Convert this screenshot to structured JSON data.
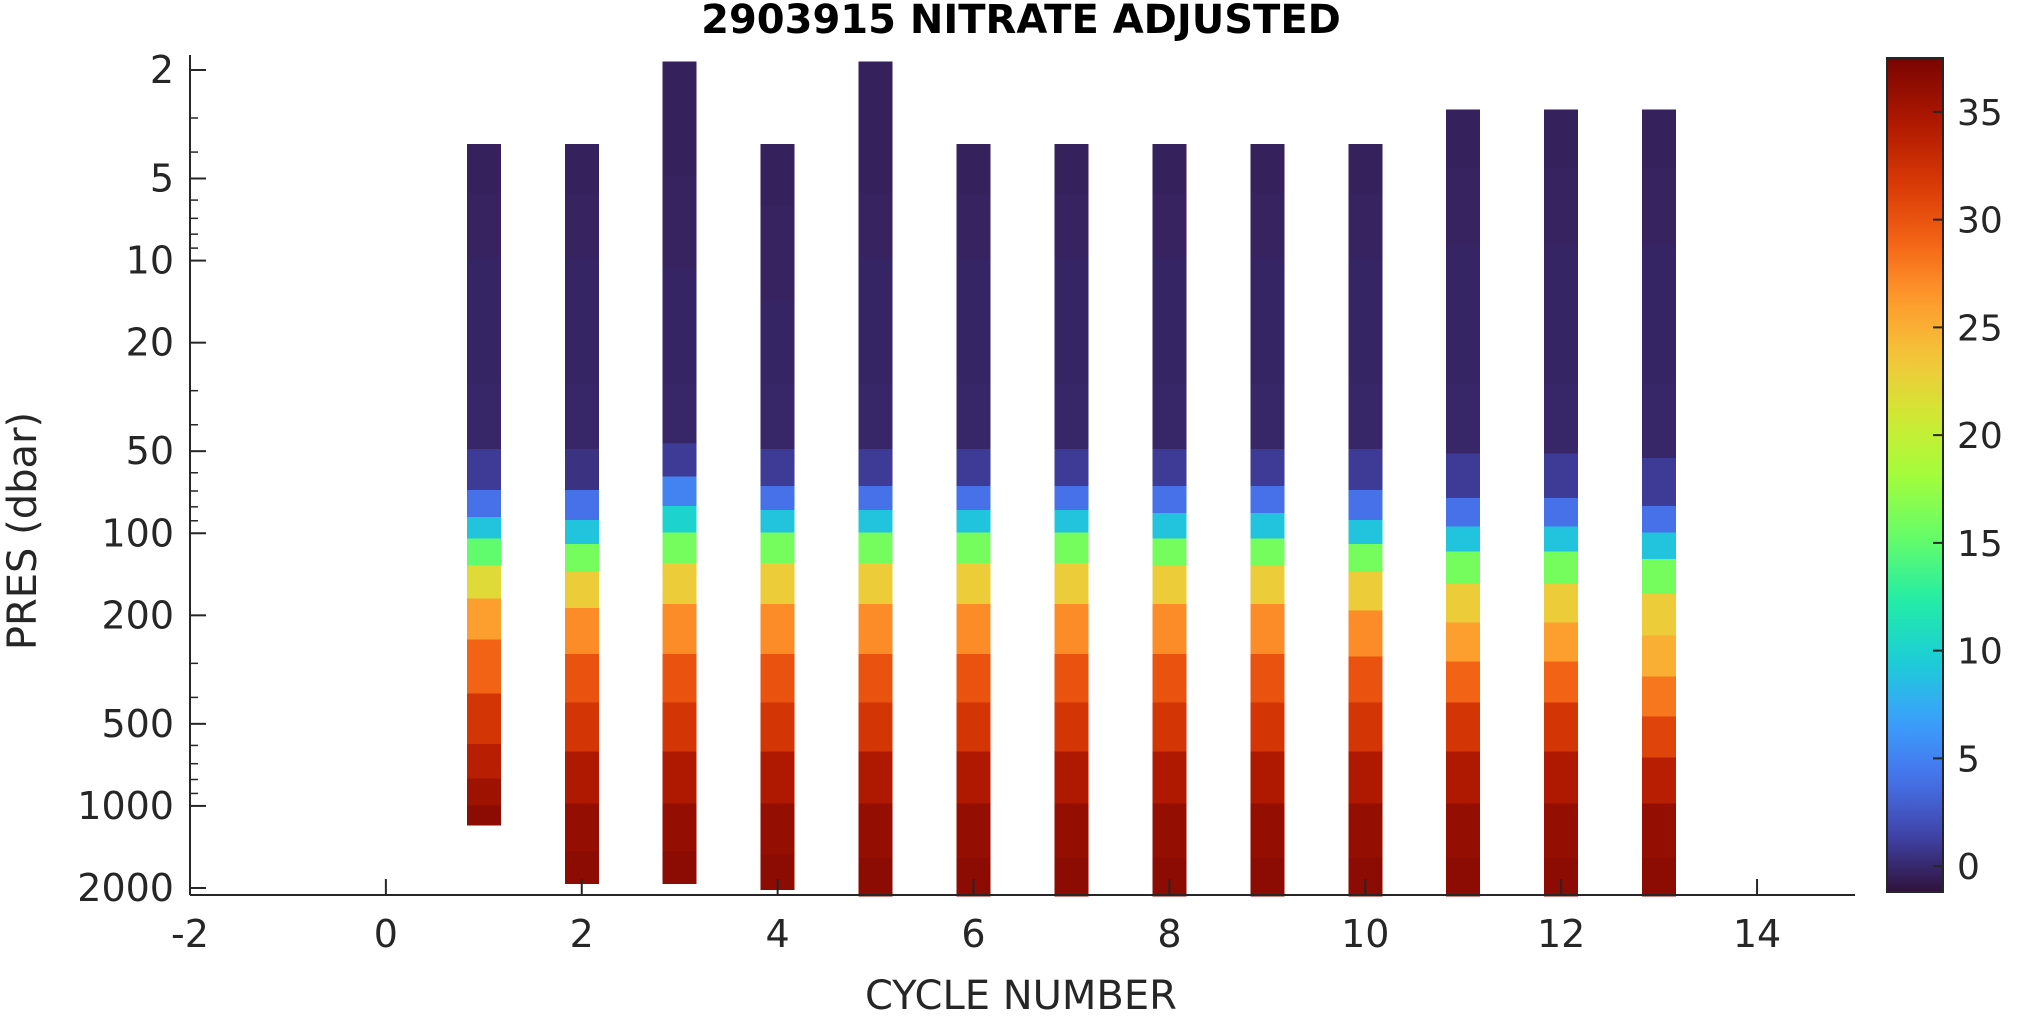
{
  "chart_data": {
    "type": "heatmap",
    "title": "2903915  NITRATE ADJUSTED",
    "xlabel": "CYCLE NUMBER",
    "ylabel": "PRES (dbar)",
    "xlim": [
      -2,
      15
    ],
    "x_ticks": [
      -2,
      0,
      2,
      4,
      6,
      8,
      10,
      12,
      14
    ],
    "ylim": [
      1.6,
      2300
    ],
    "y_scale": "log",
    "y_direction": "reversed",
    "y_ticks": [
      2,
      5,
      10,
      20,
      50,
      100,
      200,
      500,
      1000,
      2000
    ],
    "colorbar": {
      "colormap": "turbo",
      "range": [
        -1.2,
        37.5
      ],
      "ticks": [
        0,
        5,
        10,
        15,
        20,
        25,
        30,
        35
      ]
    },
    "profiles": [
      {
        "cycle": 1,
        "nitrate": [
          [
            4,
            -0.4
          ],
          [
            8,
            -0.3
          ],
          [
            12,
            -0.2
          ],
          [
            20,
            -0.2
          ],
          [
            40,
            -0.1
          ],
          [
            60,
            1
          ],
          [
            80,
            4
          ],
          [
            95,
            9
          ],
          [
            115,
            15
          ],
          [
            150,
            22
          ],
          [
            200,
            26
          ],
          [
            300,
            29
          ],
          [
            500,
            32
          ],
          [
            700,
            34
          ],
          [
            900,
            35.5
          ],
          [
            1100,
            36.5
          ]
        ]
      },
      {
        "cycle": 2,
        "nitrate": [
          [
            4,
            -0.4
          ],
          [
            8,
            -0.3
          ],
          [
            12,
            -0.2
          ],
          [
            20,
            -0.2
          ],
          [
            40,
            -0.1
          ],
          [
            60,
            0.5
          ],
          [
            80,
            4
          ],
          [
            100,
            9
          ],
          [
            120,
            16
          ],
          [
            160,
            23
          ],
          [
            220,
            27
          ],
          [
            350,
            30
          ],
          [
            500,
            32
          ],
          [
            800,
            34.5
          ],
          [
            1200,
            36
          ],
          [
            1800,
            36.5
          ]
        ]
      },
      {
        "cycle": 3,
        "nitrate": [
          [
            2,
            -0.4
          ],
          [
            4,
            -0.4
          ],
          [
            6,
            -0.3
          ],
          [
            9,
            -0.3
          ],
          [
            13,
            -0.2
          ],
          [
            20,
            -0.2
          ],
          [
            40,
            -0.1
          ],
          [
            55,
            1
          ],
          [
            70,
            5
          ],
          [
            90,
            10
          ],
          [
            110,
            16
          ],
          [
            150,
            23
          ],
          [
            220,
            27
          ],
          [
            350,
            30
          ],
          [
            500,
            32
          ],
          [
            800,
            34.5
          ],
          [
            1200,
            36
          ],
          [
            1800,
            36.5
          ]
        ]
      },
      {
        "cycle": 4,
        "nitrate": [
          [
            4,
            -0.4
          ],
          [
            10,
            -0.3
          ],
          [
            20,
            -0.2
          ],
          [
            40,
            -0.1
          ],
          [
            60,
            1
          ],
          [
            75,
            4
          ],
          [
            90,
            9
          ],
          [
            110,
            16
          ],
          [
            150,
            23
          ],
          [
            220,
            27
          ],
          [
            350,
            30
          ],
          [
            500,
            32
          ],
          [
            800,
            34.5
          ],
          [
            1200,
            36
          ],
          [
            1900,
            36.5
          ]
        ]
      },
      {
        "cycle": 5,
        "nitrate": [
          [
            2,
            -0.4
          ],
          [
            4,
            -0.4
          ],
          [
            8,
            -0.3
          ],
          [
            12,
            -0.2
          ],
          [
            20,
            -0.2
          ],
          [
            40,
            -0.1
          ],
          [
            60,
            1
          ],
          [
            75,
            4
          ],
          [
            90,
            9
          ],
          [
            110,
            16
          ],
          [
            150,
            23
          ],
          [
            220,
            27
          ],
          [
            350,
            30
          ],
          [
            500,
            32
          ],
          [
            800,
            34.5
          ],
          [
            1200,
            36
          ],
          [
            2000,
            36.5
          ]
        ]
      },
      {
        "cycle": 6,
        "nitrate": [
          [
            4,
            -0.4
          ],
          [
            8,
            -0.3
          ],
          [
            12,
            -0.2
          ],
          [
            20,
            -0.2
          ],
          [
            40,
            -0.1
          ],
          [
            60,
            1
          ],
          [
            75,
            4
          ],
          [
            90,
            9
          ],
          [
            110,
            16
          ],
          [
            150,
            23
          ],
          [
            220,
            27
          ],
          [
            350,
            30
          ],
          [
            500,
            32
          ],
          [
            800,
            34.5
          ],
          [
            1200,
            36
          ],
          [
            2000,
            36.5
          ]
        ]
      },
      {
        "cycle": 7,
        "nitrate": [
          [
            4,
            -0.4
          ],
          [
            8,
            -0.3
          ],
          [
            12,
            -0.2
          ],
          [
            20,
            -0.2
          ],
          [
            40,
            -0.1
          ],
          [
            60,
            1
          ],
          [
            75,
            4
          ],
          [
            90,
            9
          ],
          [
            110,
            16
          ],
          [
            150,
            23
          ],
          [
            220,
            27
          ],
          [
            350,
            30
          ],
          [
            500,
            32
          ],
          [
            800,
            34.5
          ],
          [
            1200,
            36
          ],
          [
            2000,
            36.5
          ]
        ]
      },
      {
        "cycle": 8,
        "nitrate": [
          [
            4,
            -0.4
          ],
          [
            8,
            -0.3
          ],
          [
            12,
            -0.2
          ],
          [
            20,
            -0.2
          ],
          [
            40,
            -0.1
          ],
          [
            60,
            1
          ],
          [
            75,
            4
          ],
          [
            95,
            9
          ],
          [
            115,
            16
          ],
          [
            150,
            23
          ],
          [
            220,
            27
          ],
          [
            350,
            30
          ],
          [
            500,
            32
          ],
          [
            800,
            34.5
          ],
          [
            1200,
            36
          ],
          [
            2000,
            36.5
          ]
        ]
      },
      {
        "cycle": 9,
        "nitrate": [
          [
            4,
            -0.4
          ],
          [
            8,
            -0.3
          ],
          [
            12,
            -0.2
          ],
          [
            20,
            -0.2
          ],
          [
            40,
            -0.1
          ],
          [
            60,
            1
          ],
          [
            75,
            4
          ],
          [
            95,
            9
          ],
          [
            115,
            16
          ],
          [
            150,
            23
          ],
          [
            220,
            27
          ],
          [
            350,
            30
          ],
          [
            500,
            32
          ],
          [
            800,
            34.5
          ],
          [
            1200,
            36
          ],
          [
            2000,
            36.5
          ]
        ]
      },
      {
        "cycle": 10,
        "nitrate": [
          [
            4,
            -0.4
          ],
          [
            8,
            -0.3
          ],
          [
            12,
            -0.2
          ],
          [
            20,
            -0.2
          ],
          [
            40,
            -0.1
          ],
          [
            60,
            1
          ],
          [
            80,
            4
          ],
          [
            100,
            9
          ],
          [
            120,
            16
          ],
          [
            160,
            23
          ],
          [
            230,
            27
          ],
          [
            350,
            30
          ],
          [
            500,
            32
          ],
          [
            800,
            34.5
          ],
          [
            1200,
            36
          ],
          [
            2000,
            36.5
          ]
        ]
      },
      {
        "cycle": 11,
        "nitrate": [
          [
            3,
            -0.4
          ],
          [
            7,
            -0.3
          ],
          [
            11,
            -0.2
          ],
          [
            20,
            -0.2
          ],
          [
            40,
            -0.1
          ],
          [
            65,
            1
          ],
          [
            85,
            4
          ],
          [
            105,
            9
          ],
          [
            130,
            16
          ],
          [
            180,
            23
          ],
          [
            250,
            26
          ],
          [
            350,
            29
          ],
          [
            500,
            32
          ],
          [
            800,
            34.5
          ],
          [
            1200,
            36
          ],
          [
            2000,
            36.5
          ]
        ]
      },
      {
        "cycle": 12,
        "nitrate": [
          [
            3,
            -0.4
          ],
          [
            7,
            -0.3
          ],
          [
            11,
            -0.2
          ],
          [
            20,
            -0.2
          ],
          [
            40,
            -0.1
          ],
          [
            65,
            1
          ],
          [
            85,
            4
          ],
          [
            105,
            9
          ],
          [
            130,
            16
          ],
          [
            180,
            23
          ],
          [
            250,
            26
          ],
          [
            350,
            29
          ],
          [
            500,
            32
          ],
          [
            800,
            34.5
          ],
          [
            1200,
            36
          ],
          [
            2000,
            36.5
          ]
        ]
      },
      {
        "cycle": 13,
        "nitrate": [
          [
            3,
            -0.4
          ],
          [
            7,
            -0.3
          ],
          [
            11,
            -0.2
          ],
          [
            20,
            -0.2
          ],
          [
            40,
            -0.1
          ],
          [
            70,
            1
          ],
          [
            90,
            4
          ],
          [
            110,
            9
          ],
          [
            140,
            16
          ],
          [
            200,
            23
          ],
          [
            280,
            25
          ],
          [
            400,
            28
          ],
          [
            550,
            31
          ],
          [
            800,
            34
          ],
          [
            1200,
            36
          ],
          [
            2000,
            36.5
          ]
        ]
      }
    ]
  }
}
